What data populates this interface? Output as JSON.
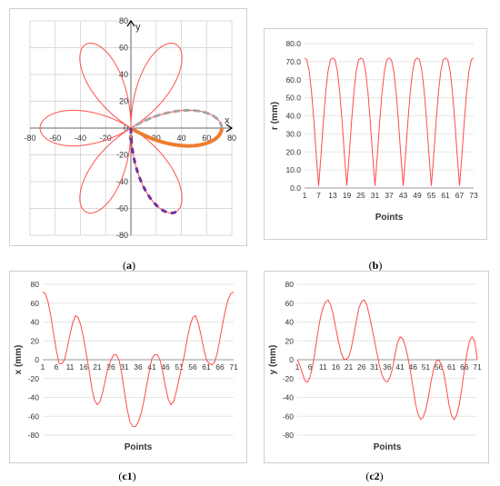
{
  "captions": {
    "a": "a",
    "b": "b",
    "c1": "c1",
    "c2": "c2"
  },
  "chart_data": [
    {
      "id": "a",
      "type": "line",
      "curve": "rose r = 72·|cos(3θ)|",
      "r_max": 72,
      "petals": 6,
      "xlim": [
        -80,
        80
      ],
      "ylim": [
        -80,
        80
      ],
      "x_ticks": [
        -80,
        -60,
        -40,
        -20,
        0,
        20,
        40,
        60,
        80
      ],
      "y_ticks": [
        -80,
        -60,
        -40,
        -20,
        0,
        20,
        40,
        60,
        80
      ],
      "xlabel": "x",
      "ylabel": "y",
      "grid": true,
      "colors": {
        "curve": "#ff5050",
        "highlight": "#ed7d31",
        "dashed": "#a5a5a5",
        "points": "#7030a0"
      }
    },
    {
      "id": "b",
      "type": "line",
      "xlabel": "Points",
      "ylabel": "r (mm)",
      "ylim": [
        0,
        80
      ],
      "y_ticks": [
        "0.0",
        "10.0",
        "20.0",
        "30.0",
        "40.0",
        "50.0",
        "60.0",
        "70.0",
        "80.0"
      ],
      "x_tick_labels": [
        "1",
        "7",
        "13",
        "19",
        "25",
        "31",
        "37",
        "43",
        "49",
        "55",
        "61",
        "67",
        "73"
      ],
      "series": [
        {
          "values": [
            72,
            71,
            64.7,
            52.8,
            36.7,
            18.1,
            1.3,
            18.1,
            36.7,
            52.8,
            64.7,
            71,
            72,
            71,
            64.7,
            52.8,
            36.7,
            18.1,
            1.3,
            18.1,
            36.7,
            52.8,
            64.7,
            71,
            72,
            71,
            64.7,
            52.8,
            36.7,
            18.1,
            1.3,
            18.1,
            36.7,
            52.8,
            64.7,
            71,
            72,
            71,
            64.7,
            52.8,
            36.7,
            18.1,
            1.3,
            18.1,
            36.7,
            52.8,
            64.7,
            71,
            72,
            71,
            64.7,
            52.8,
            36.7,
            18.1,
            1.3,
            18.1,
            36.7,
            52.8,
            64.7,
            71,
            72,
            71,
            64.7,
            52.8,
            36.7,
            18.1,
            1.3,
            18.1,
            36.7,
            52.8,
            64.7,
            71,
            72
          ]
        }
      ],
      "color": "#ff4b4b"
    },
    {
      "id": "c1",
      "type": "line",
      "xlabel": "Points",
      "ylabel": "x (mm)",
      "ylim": [
        -80,
        80
      ],
      "y_ticks": [
        -80,
        -60,
        -40,
        -20,
        0,
        20,
        40,
        60,
        80
      ],
      "x_tick_labels": [
        "1",
        "6",
        "11",
        "16",
        "21",
        "26",
        "31",
        "36",
        "41",
        "46",
        "51",
        "56",
        "61",
        "66",
        "71"
      ],
      "series": [
        {
          "values": [
            72,
            69.9,
            60.8,
            45.7,
            27.5,
            9.8,
            -3.8,
            -4.2,
            0,
            12.2,
            26.9,
            39.2,
            46.8,
            44.6,
            36.1,
            22.6,
            5.7,
            -11.1,
            -30.3,
            -43.2,
            -47.7,
            -44.6,
            -34.3,
            -20.8,
            -7.7,
            -0.5,
            5.2,
            5.3,
            -0.5,
            -15.4,
            -35.4,
            -53.3,
            -65.9,
            -70.8,
            -71,
            -66.3,
            -57.8,
            -45,
            -29.3,
            -13.3,
            1,
            5.3,
            5.2,
            0,
            -12.3,
            -28.9,
            -41.7,
            -47.7,
            -44.6,
            -33.5,
            -20.4,
            -6.8,
            5.7,
            22.6,
            36.1,
            44.6,
            46.8,
            39.2,
            26.9,
            12.2,
            0,
            -3.7,
            -5.6,
            -2.4,
            7.1,
            22.6,
            38.5,
            52.8,
            64.2,
            70.2,
            72
          ]
        }
      ],
      "color": "#ff4b4b"
    },
    {
      "id": "c2",
      "type": "line",
      "xlabel": "Points",
      "ylabel": "y (mm)",
      "ylim": [
        -80,
        80
      ],
      "y_ticks": [
        -80,
        -60,
        -40,
        -20,
        0,
        20,
        40,
        60,
        80
      ],
      "x_tick_labels": [
        "1",
        "6",
        "11",
        "16",
        "21",
        "26",
        "31",
        "36",
        "41",
        "46",
        "51",
        "56",
        "61",
        "66",
        "71"
      ],
      "series": [
        {
          "values": [
            0,
            -6.1,
            -14.4,
            -22.3,
            -23.8,
            -18.1,
            -6.3,
            11.1,
            29.1,
            44.6,
            55.2,
            61.3,
            63.4,
            58.2,
            47.8,
            33.2,
            19.5,
            8,
            1,
            0.3,
            2.9,
            12.3,
            26.4,
            41.7,
            55.2,
            61.8,
            63.4,
            58.6,
            47.6,
            34.3,
            20.5,
            6.8,
            -6.8,
            -16.4,
            -22.1,
            -23.5,
            -18.9,
            -9.8,
            5.3,
            18.1,
            24.3,
            22.3,
            14.4,
            3,
            -12.2,
            -29.6,
            -46.7,
            -58.2,
            -63.2,
            -60.8,
            -52.6,
            -39.5,
            -23.6,
            -9.8,
            -1.5,
            -0.1,
            -4.9,
            -14.6,
            -30.4,
            -47.7,
            -59.5,
            -63.4,
            -58.6,
            -47.6,
            -30.4,
            -10.3,
            7.1,
            20,
            24.3,
            19.5,
            0
          ]
        }
      ],
      "color": "#ff4b4b"
    }
  ]
}
